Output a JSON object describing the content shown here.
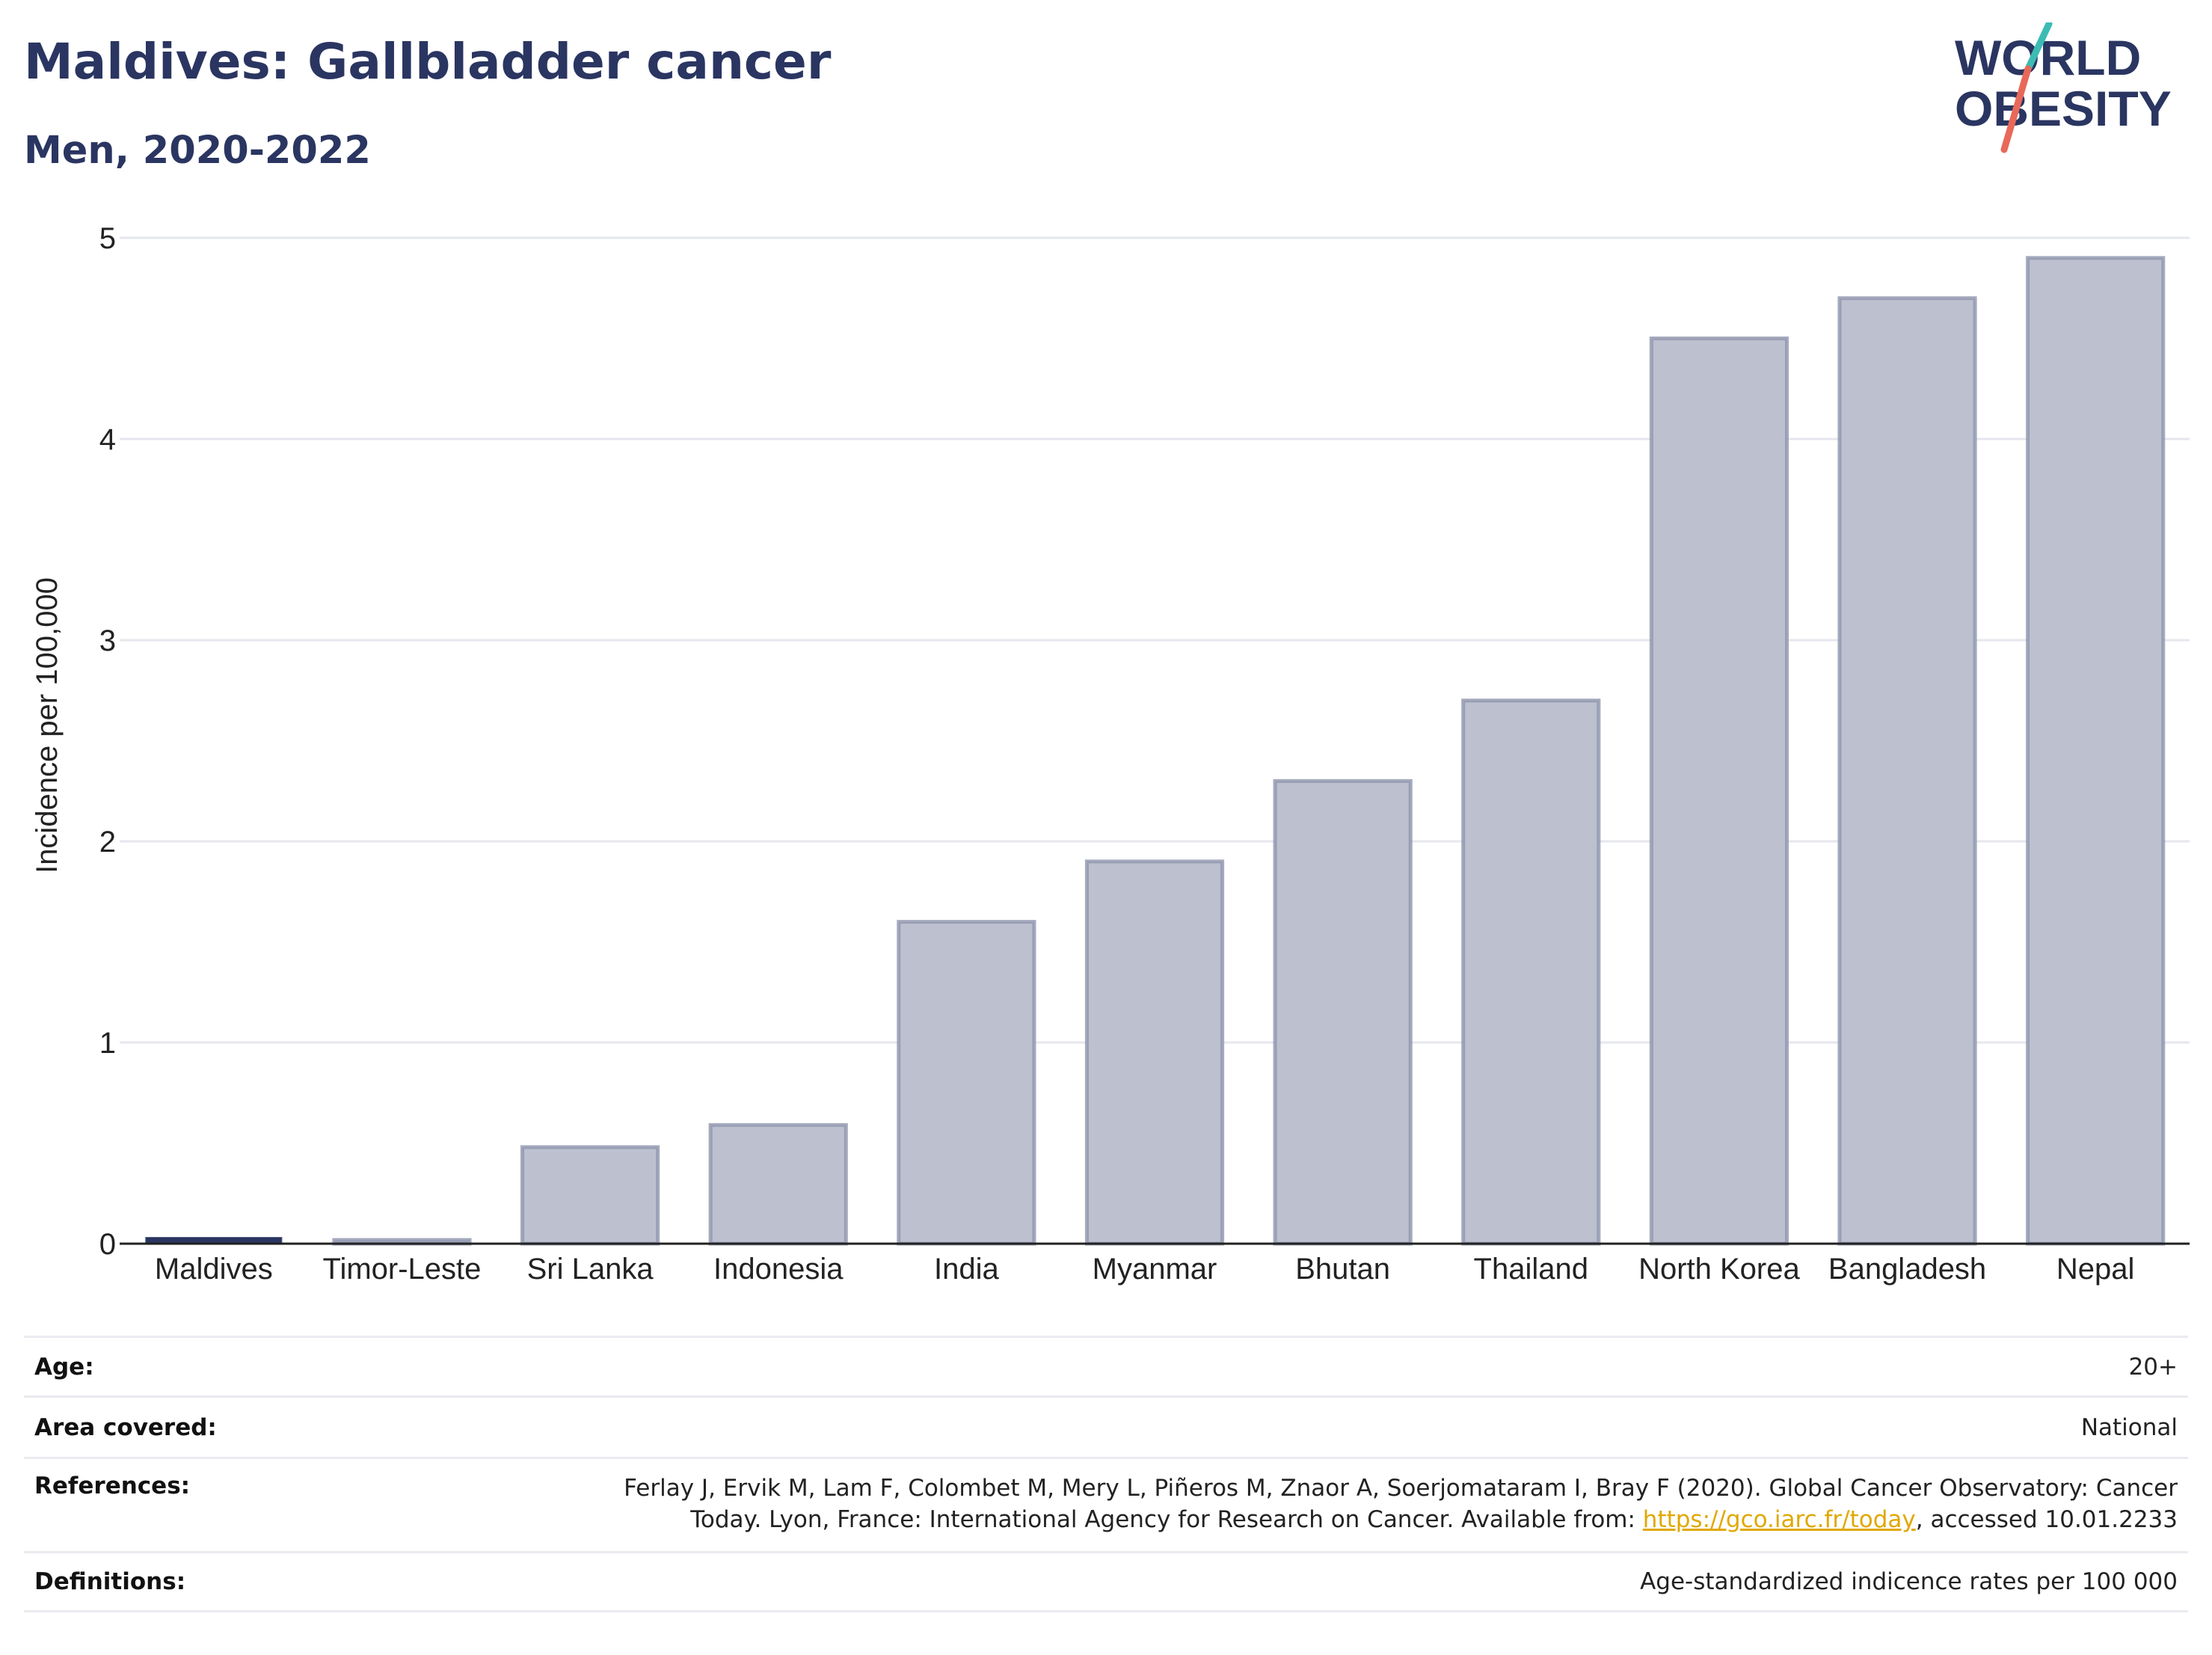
{
  "header": {
    "title": "Maldives: Gallbladder cancer",
    "subtitle": "Men, 2020-2022",
    "logo_text": [
      "WORLD",
      "OBESITY"
    ]
  },
  "colors": {
    "title": "#2a3561",
    "bar_fill": "#bcc0cf",
    "bar_stroke": "#8f95ad",
    "highlight_bar": "#2a3561",
    "link": "#e0a800",
    "logo_teal": "#3cbcb4",
    "logo_red": "#e8695a"
  },
  "chart_data": {
    "type": "bar",
    "title": "Maldives: Gallbladder cancer",
    "subtitle": "Men, 2020-2022",
    "xlabel": "",
    "ylabel": "Incidence per 100,000",
    "ylim": [
      0,
      5
    ],
    "yticks": [
      0,
      1,
      2,
      3,
      4,
      5
    ],
    "categories": [
      "Maldives",
      "Timor-Leste",
      "Sri Lanka",
      "Indonesia",
      "India",
      "Myanmar",
      "Bhutan",
      "Thailand",
      "North Korea",
      "Bangladesh",
      "Nepal"
    ],
    "values": [
      0.02,
      0.01,
      0.48,
      0.59,
      1.6,
      1.9,
      2.3,
      2.7,
      4.5,
      4.7,
      4.9
    ],
    "highlight": "Maldives",
    "grid": true
  },
  "info": {
    "age_label": "Age:",
    "age_value": "20+",
    "area_label": "Area covered:",
    "area_value": "National",
    "references_label": "References:",
    "references_line1": "Ferlay J, Ervik M, Lam F, Colombet M, Mery L, Piñeros M, Znaor A, Soerjomataram I, Bray F (2020). Global Cancer Observatory: Cancer",
    "references_line2_pre": "Today. Lyon, France: International Agency for Research on Cancer. Available from: ",
    "references_link": "https://gco.iarc.fr/today",
    "references_line2_post": ", accessed 10.01.2233",
    "definitions_label": "Definitions:",
    "definitions_value": "Age-standardized indicence rates per 100 000"
  }
}
